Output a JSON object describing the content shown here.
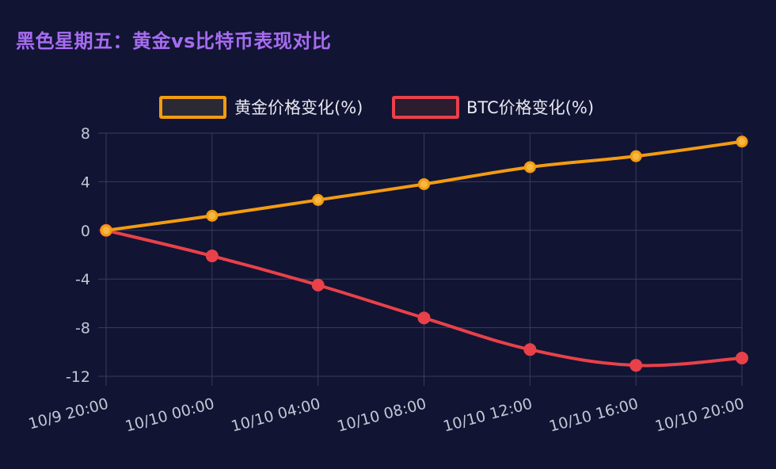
{
  "chart_data": {
    "type": "line",
    "title": "黑色星期五：黄金vs比特币表现对比",
    "categories": [
      "10/9 20:00",
      "10/10 00:00",
      "10/10 04:00",
      "10/10 08:00",
      "10/10 12:00",
      "10/10 16:00",
      "10/10 20:00"
    ],
    "series": [
      {
        "name": "黄金价格变化(%)",
        "color": "#f39c12",
        "values": [
          0,
          1.2,
          2.5,
          3.8,
          5.2,
          6.1,
          7.3
        ]
      },
      {
        "name": "BTC价格变化(%)",
        "color": "#e84149",
        "values": [
          0,
          -2.1,
          -4.5,
          -7.2,
          -9.8,
          -11.1,
          -10.5
        ]
      }
    ],
    "yticks": [
      8,
      4,
      0,
      -4,
      -8,
      -12
    ],
    "ylim": [
      -12,
      8
    ],
    "grid": true,
    "legend_position": "top-center",
    "xlabel": "",
    "ylabel": ""
  },
  "colors": {
    "background": "#121433",
    "title": "#a56cf0",
    "grid": "#3a3c5c",
    "axis_text": "#c4c6d6"
  }
}
